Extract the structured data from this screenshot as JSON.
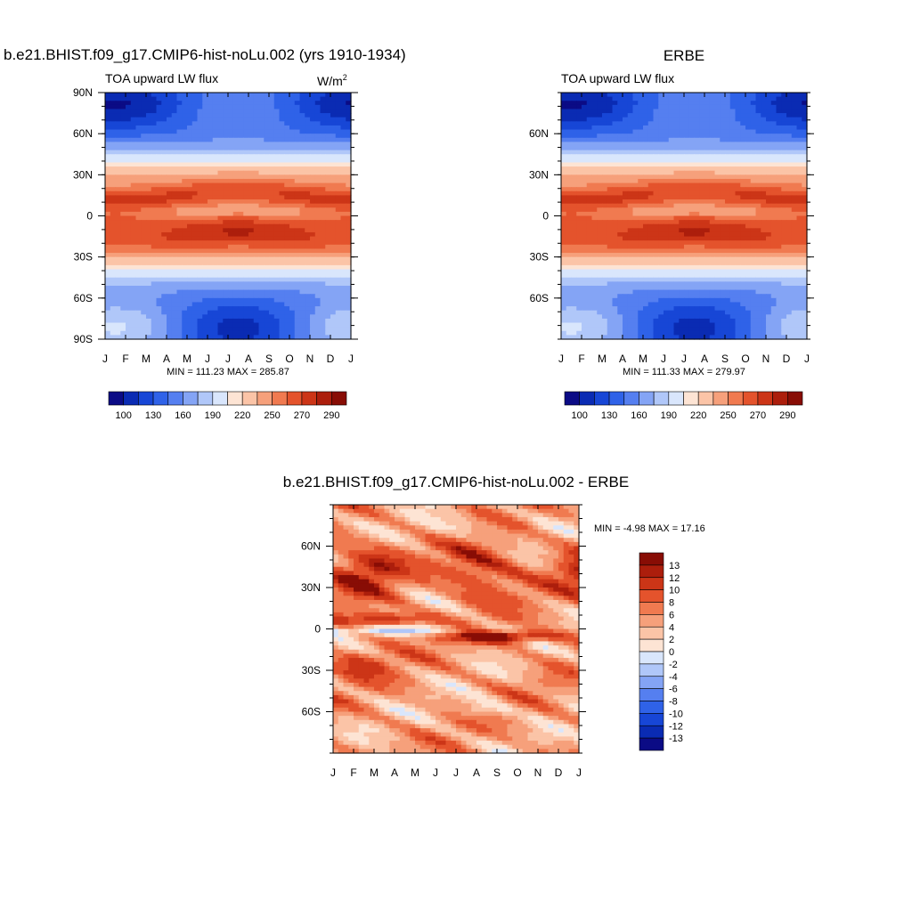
{
  "colors": {
    "cmap": [
      "#0b0b85",
      "#0a2bb3",
      "#1746d6",
      "#2f62e8",
      "#557ff0",
      "#84a4f5",
      "#b0c7f9",
      "#d9e6fc",
      "#fde4d4",
      "#fbc4a7",
      "#f6a07b",
      "#f07a50",
      "#e4532c",
      "#cc3517",
      "#ac1e0c",
      "#880d05"
    ]
  },
  "chart_data": [
    {
      "id": "model",
      "type": "heatmap",
      "title": "b.e21.BHIST.f09_g17.CMIP6-hist-noLu.002 (yrs 1910-1934)",
      "subtitle_left": "TOA upward LW flux",
      "units": "W/m",
      "units_sup": "2",
      "x_labels": [
        "J",
        "F",
        "M",
        "A",
        "M",
        "J",
        "J",
        "A",
        "S",
        "O",
        "N",
        "D",
        "J"
      ],
      "y_ticks": [
        {
          "value": 90,
          "label": "90N"
        },
        {
          "value": 60,
          "label": "60N"
        },
        {
          "value": 30,
          "label": "30N"
        },
        {
          "value": 0,
          "label": "0"
        },
        {
          "value": -30,
          "label": "30S"
        },
        {
          "value": -60,
          "label": "60S"
        },
        {
          "value": -90,
          "label": "90S"
        }
      ],
      "ylim": [
        -90,
        90
      ],
      "min_max": "MIN = 111.23 MAX = 285.87",
      "colorbar_labels": [
        "100",
        "130",
        "160",
        "190",
        "220",
        "250",
        "270",
        "290"
      ]
    },
    {
      "id": "obs",
      "type": "heatmap",
      "title": "ERBE",
      "subtitle_left": "TOA upward LW flux",
      "x_labels": [
        "J",
        "F",
        "M",
        "A",
        "M",
        "J",
        "J",
        "A",
        "S",
        "O",
        "N",
        "D",
        "J"
      ],
      "y_ticks": [
        {
          "value": 60,
          "label": "60N"
        },
        {
          "value": 30,
          "label": "30N"
        },
        {
          "value": 0,
          "label": "0"
        },
        {
          "value": -30,
          "label": "30S"
        },
        {
          "value": -60,
          "label": "60S"
        }
      ],
      "ylim": [
        -90,
        90
      ],
      "min_max": "MIN = 111.33 MAX = 279.97",
      "colorbar_labels": [
        "100",
        "130",
        "160",
        "190",
        "220",
        "250",
        "270",
        "290"
      ]
    },
    {
      "id": "diff",
      "type": "heatmap",
      "title": "b.e21.BHIST.f09_g17.CMIP6-hist-noLu.002 - ERBE",
      "x_labels": [
        "J",
        "F",
        "M",
        "A",
        "M",
        "J",
        "J",
        "A",
        "S",
        "O",
        "N",
        "D",
        "J"
      ],
      "y_ticks": [
        {
          "value": 60,
          "label": "60N"
        },
        {
          "value": 30,
          "label": "30N"
        },
        {
          "value": 0,
          "label": "0"
        },
        {
          "value": -30,
          "label": "30S"
        },
        {
          "value": -60,
          "label": "60S"
        }
      ],
      "ylim": [
        -90,
        90
      ],
      "min_max": "MIN =  -4.98 MAX =  17.16",
      "colorbar_labels": [
        "13",
        "12",
        "10",
        "8",
        "6",
        "4",
        "2",
        "0",
        "-2",
        "-4",
        "-6",
        "-8",
        "-10",
        "-12",
        "-13"
      ]
    }
  ]
}
